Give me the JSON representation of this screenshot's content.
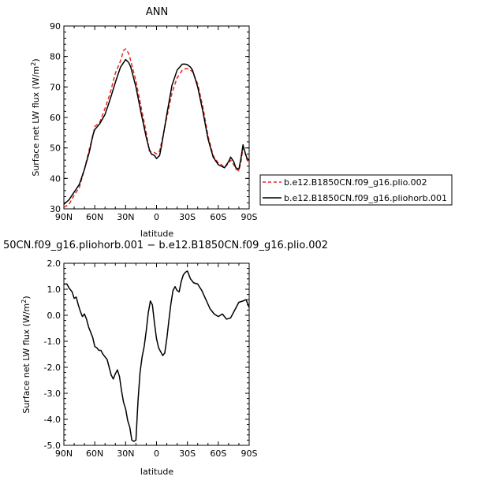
{
  "chart_data": [
    {
      "type": "line",
      "title": "ANN",
      "xlabel": "latitude",
      "ylabel": "Surface net LW flux (W/m²)",
      "ylabel_main": "Surface net LW flux (W/m",
      "ylabel_sup": "2",
      "ylabel_end": ")",
      "xlim": [
        90,
        -90
      ],
      "ylim": [
        30,
        90
      ],
      "xticks": [
        {
          "value": 90,
          "label": "90N"
        },
        {
          "value": 60,
          "label": "60N"
        },
        {
          "value": 30,
          "label": "30N"
        },
        {
          "value": 0,
          "label": "0"
        },
        {
          "value": -30,
          "label": "30S"
        },
        {
          "value": -60,
          "label": "60S"
        },
        {
          "value": -90,
          "label": "90S"
        }
      ],
      "yticks": [
        30,
        40,
        50,
        60,
        70,
        80,
        90
      ],
      "legend_position": "right-middle",
      "series": [
        {
          "name": "b.e12.B1850CN.f09_g16.plio.002",
          "color": "#e8261e",
          "dash": "dashed",
          "x": [
            90,
            85,
            80,
            75,
            70,
            65,
            62,
            60,
            55,
            50,
            45,
            40,
            35,
            32,
            30,
            27,
            25,
            20,
            15,
            10,
            7,
            5,
            2,
            0,
            -3,
            -5,
            -10,
            -15,
            -20,
            -25,
            -28,
            -30,
            -33,
            -35,
            -40,
            -45,
            -50,
            -55,
            -60,
            -63,
            -66,
            -70,
            -72,
            -75,
            -77,
            -80,
            -82,
            -84,
            -86,
            -88,
            -90
          ],
          "y": [
            30.5,
            31.5,
            34.5,
            37,
            43,
            50,
            53.5,
            57,
            58.5,
            63,
            68,
            74.5,
            78.5,
            82,
            82.5,
            81,
            78.5,
            72,
            63.5,
            55,
            49,
            48.5,
            48.5,
            48,
            49,
            52,
            60,
            68,
            73,
            75.5,
            76,
            76,
            75.5,
            75,
            71,
            63.5,
            54,
            47.5,
            45,
            44.5,
            43.5,
            45,
            46,
            44.5,
            43,
            42.5,
            45.5,
            50,
            48.5,
            46,
            45
          ]
        },
        {
          "name": "b.e12.B1850CN.f09_g16.pliohorb.001",
          "color": "#000000",
          "dash": "solid",
          "x": [
            90,
            85,
            80,
            75,
            70,
            65,
            62,
            60,
            55,
            50,
            45,
            40,
            35,
            32,
            30,
            27,
            25,
            20,
            15,
            10,
            7,
            5,
            2,
            0,
            -3,
            -5,
            -10,
            -15,
            -20,
            -25,
            -28,
            -30,
            -33,
            -35,
            -40,
            -45,
            -50,
            -55,
            -60,
            -63,
            -66,
            -70,
            -72,
            -75,
            -77,
            -80,
            -82,
            -84,
            -86,
            -88,
            -90
          ],
          "y": [
            31.5,
            33,
            35.5,
            38,
            43,
            49,
            54,
            56,
            58,
            61,
            66,
            71.5,
            76.5,
            78,
            79,
            78,
            76.5,
            70,
            61.5,
            53.5,
            49.5,
            48,
            47.5,
            46.5,
            47.5,
            51,
            61,
            70.5,
            75.5,
            77.5,
            77.5,
            77.3,
            76.5,
            75.5,
            70,
            62,
            53,
            47,
            44.5,
            44,
            43.5,
            45.5,
            47,
            45.5,
            43.5,
            43,
            46.5,
            51,
            48.5,
            46.5,
            46
          ]
        }
      ]
    },
    {
      "type": "line",
      "title": "50CN.f09_g16.pliohorb.001 − b.e12.B1850CN.f09_g16.plio.002",
      "xlabel": "latitude",
      "ylabel": "Surface net LW flux (W/m²)",
      "ylabel_main": "Surface net LW flux (W/m",
      "ylabel_sup": "2",
      "ylabel_end": ")",
      "xlim": [
        90,
        -90
      ],
      "ylim": [
        -5.0,
        2.0
      ],
      "xticks": [
        {
          "value": 90,
          "label": "90N"
        },
        {
          "value": 60,
          "label": "60N"
        },
        {
          "value": 30,
          "label": "30N"
        },
        {
          "value": 0,
          "label": "0"
        },
        {
          "value": -30,
          "label": "30S"
        },
        {
          "value": -60,
          "label": "60S"
        },
        {
          "value": -90,
          "label": "90S"
        }
      ],
      "yticks": [
        {
          "value": 2.0,
          "label": "2.0"
        },
        {
          "value": 1.0,
          "label": "1.0"
        },
        {
          "value": 0.0,
          "label": "0.0"
        },
        {
          "value": -1.0,
          "label": "-1.0"
        },
        {
          "value": -2.0,
          "label": "-2.0"
        },
        {
          "value": -3.0,
          "label": "-3.0"
        },
        {
          "value": -4.0,
          "label": "-4.0"
        },
        {
          "value": -5.0,
          "label": "-5.0"
        }
      ],
      "series": [
        {
          "color": "#000000",
          "dash": "solid",
          "x": [
            90,
            87,
            85,
            82,
            80,
            78,
            76,
            74,
            72,
            70,
            68,
            66,
            64,
            62,
            60,
            58,
            56,
            54,
            52,
            50,
            48,
            46,
            44,
            42,
            40,
            38,
            36,
            34,
            32,
            30,
            28,
            26,
            24,
            22,
            20,
            18,
            16,
            14,
            12,
            10,
            8,
            6,
            4,
            2,
            0,
            -2,
            -4,
            -6,
            -8,
            -10,
            -12,
            -14,
            -16,
            -18,
            -20,
            -22,
            -24,
            -26,
            -28,
            -30,
            -33,
            -36,
            -40,
            -44,
            -48,
            -52,
            -56,
            -60,
            -64,
            -68,
            -72,
            -76,
            -80,
            -84,
            -87,
            -90
          ],
          "y": [
            1.2,
            1.2,
            1.05,
            0.9,
            0.65,
            0.7,
            0.4,
            0.15,
            -0.05,
            0.05,
            -0.15,
            -0.45,
            -0.65,
            -0.85,
            -1.2,
            -1.25,
            -1.35,
            -1.35,
            -1.5,
            -1.6,
            -1.7,
            -2.0,
            -2.3,
            -2.45,
            -2.25,
            -2.1,
            -2.35,
            -2.9,
            -3.35,
            -3.6,
            -4.05,
            -4.3,
            -4.8,
            -4.85,
            -4.8,
            -3.3,
            -2.2,
            -1.6,
            -1.2,
            -0.6,
            0.1,
            0.55,
            0.4,
            -0.3,
            -0.9,
            -1.25,
            -1.4,
            -1.55,
            -1.45,
            -0.9,
            -0.2,
            0.45,
            0.95,
            1.1,
            0.95,
            0.9,
            1.3,
            1.55,
            1.65,
            1.7,
            1.4,
            1.25,
            1.2,
            0.95,
            0.6,
            0.25,
            0.05,
            -0.05,
            0.05,
            -0.15,
            -0.1,
            0.2,
            0.5,
            0.55,
            0.6,
            0.3
          ]
        }
      ]
    }
  ]
}
